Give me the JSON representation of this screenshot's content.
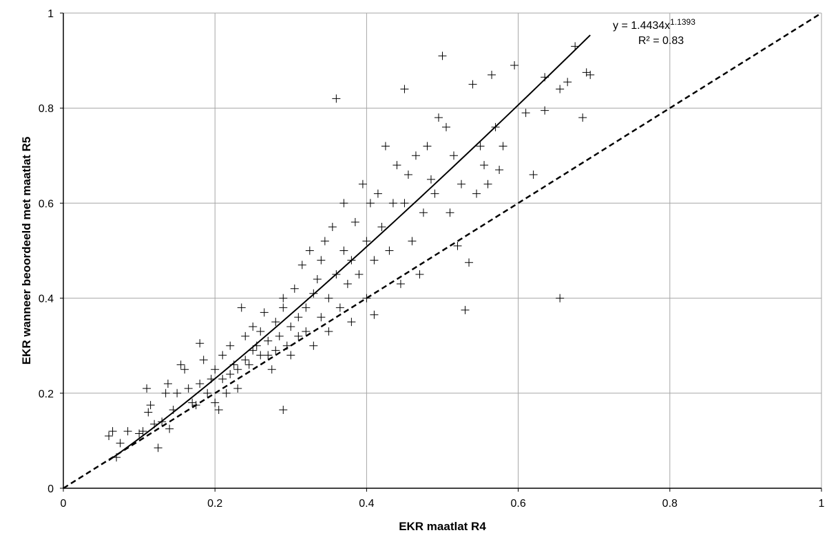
{
  "chart_data": {
    "type": "scatter",
    "title": "",
    "xlabel": "EKR maatlat R4",
    "ylabel": "EKR wanneer beoordeeld met maatlat R5",
    "xlim": [
      0,
      1
    ],
    "ylim": [
      0,
      1
    ],
    "x_ticks": [
      "0",
      "0.2",
      "0.4",
      "0.6",
      "0.8",
      "1"
    ],
    "y_ticks": [
      "0",
      "0.2",
      "0.4",
      "0.6",
      "0.8",
      "1"
    ],
    "grid": true,
    "legend": "none",
    "marker": "plus",
    "colors": {
      "marker": "#000000",
      "grid": "#a6a6a6",
      "axis": "#000000"
    },
    "annotation": {
      "equation_prefix": "y = 1.4434x",
      "equation_exponent": "1.1393",
      "r_squared": "R² = 0.83"
    },
    "trendline": {
      "type": "power",
      "a": 1.4434,
      "b": 1.1393,
      "x_range": [
        0.06,
        0.695
      ],
      "style": "solid"
    },
    "reference_line": {
      "type": "identity",
      "x_range": [
        0,
        1
      ],
      "style": "dashed"
    },
    "series": [
      {
        "points": [
          [
            0.06,
            0.11
          ],
          [
            0.065,
            0.12
          ],
          [
            0.07,
            0.065
          ],
          [
            0.075,
            0.095
          ],
          [
            0.085,
            0.12
          ],
          [
            0.1,
            0.115
          ],
          [
            0.105,
            0.12
          ],
          [
            0.11,
            0.21
          ],
          [
            0.112,
            0.16
          ],
          [
            0.115,
            0.175
          ],
          [
            0.12,
            0.135
          ],
          [
            0.125,
            0.085
          ],
          [
            0.13,
            0.14
          ],
          [
            0.135,
            0.2
          ],
          [
            0.138,
            0.22
          ],
          [
            0.14,
            0.125
          ],
          [
            0.145,
            0.165
          ],
          [
            0.15,
            0.2
          ],
          [
            0.155,
            0.26
          ],
          [
            0.16,
            0.25
          ],
          [
            0.165,
            0.21
          ],
          [
            0.17,
            0.18
          ],
          [
            0.175,
            0.175
          ],
          [
            0.18,
            0.22
          ],
          [
            0.18,
            0.305
          ],
          [
            0.185,
            0.27
          ],
          [
            0.19,
            0.2
          ],
          [
            0.195,
            0.23
          ],
          [
            0.2,
            0.25
          ],
          [
            0.2,
            0.18
          ],
          [
            0.205,
            0.165
          ],
          [
            0.21,
            0.28
          ],
          [
            0.21,
            0.23
          ],
          [
            0.215,
            0.2
          ],
          [
            0.22,
            0.24
          ],
          [
            0.22,
            0.3
          ],
          [
            0.225,
            0.26
          ],
          [
            0.23,
            0.25
          ],
          [
            0.23,
            0.21
          ],
          [
            0.235,
            0.38
          ],
          [
            0.24,
            0.27
          ],
          [
            0.24,
            0.32
          ],
          [
            0.245,
            0.26
          ],
          [
            0.25,
            0.29
          ],
          [
            0.25,
            0.34
          ],
          [
            0.255,
            0.3
          ],
          [
            0.26,
            0.28
          ],
          [
            0.26,
            0.33
          ],
          [
            0.265,
            0.37
          ],
          [
            0.27,
            0.28
          ],
          [
            0.27,
            0.31
          ],
          [
            0.275,
            0.25
          ],
          [
            0.28,
            0.29
          ],
          [
            0.28,
            0.35
          ],
          [
            0.285,
            0.32
          ],
          [
            0.29,
            0.38
          ],
          [
            0.29,
            0.4
          ],
          [
            0.29,
            0.165
          ],
          [
            0.295,
            0.3
          ],
          [
            0.3,
            0.28
          ],
          [
            0.3,
            0.34
          ],
          [
            0.305,
            0.42
          ],
          [
            0.31,
            0.36
          ],
          [
            0.31,
            0.32
          ],
          [
            0.315,
            0.47
          ],
          [
            0.32,
            0.33
          ],
          [
            0.32,
            0.38
          ],
          [
            0.325,
            0.5
          ],
          [
            0.33,
            0.41
          ],
          [
            0.33,
            0.3
          ],
          [
            0.335,
            0.44
          ],
          [
            0.34,
            0.36
          ],
          [
            0.34,
            0.48
          ],
          [
            0.345,
            0.52
          ],
          [
            0.35,
            0.4
          ],
          [
            0.35,
            0.33
          ],
          [
            0.355,
            0.55
          ],
          [
            0.36,
            0.45
          ],
          [
            0.36,
            0.82
          ],
          [
            0.365,
            0.38
          ],
          [
            0.37,
            0.5
          ],
          [
            0.37,
            0.6
          ],
          [
            0.375,
            0.43
          ],
          [
            0.38,
            0.35
          ],
          [
            0.38,
            0.48
          ],
          [
            0.385,
            0.56
          ],
          [
            0.39,
            0.45
          ],
          [
            0.395,
            0.64
          ],
          [
            0.4,
            0.52
          ],
          [
            0.4,
            0.4
          ],
          [
            0.405,
            0.6
          ],
          [
            0.41,
            0.48
          ],
          [
            0.41,
            0.365
          ],
          [
            0.415,
            0.62
          ],
          [
            0.42,
            0.55
          ],
          [
            0.425,
            0.72
          ],
          [
            0.43,
            0.5
          ],
          [
            0.435,
            0.6
          ],
          [
            0.44,
            0.68
          ],
          [
            0.445,
            0.43
          ],
          [
            0.45,
            0.84
          ],
          [
            0.45,
            0.6
          ],
          [
            0.455,
            0.66
          ],
          [
            0.46,
            0.52
          ],
          [
            0.465,
            0.7
          ],
          [
            0.47,
            0.45
          ],
          [
            0.475,
            0.58
          ],
          [
            0.48,
            0.72
          ],
          [
            0.485,
            0.65
          ],
          [
            0.49,
            0.62
          ],
          [
            0.495,
            0.78
          ],
          [
            0.5,
            0.91
          ],
          [
            0.505,
            0.76
          ],
          [
            0.51,
            0.58
          ],
          [
            0.515,
            0.7
          ],
          [
            0.52,
            0.51
          ],
          [
            0.525,
            0.64
          ],
          [
            0.53,
            0.375
          ],
          [
            0.535,
            0.475
          ],
          [
            0.54,
            0.85
          ],
          [
            0.545,
            0.62
          ],
          [
            0.55,
            0.72
          ],
          [
            0.555,
            0.68
          ],
          [
            0.56,
            0.64
          ],
          [
            0.565,
            0.87
          ],
          [
            0.57,
            0.76
          ],
          [
            0.575,
            0.67
          ],
          [
            0.58,
            0.72
          ],
          [
            0.595,
            0.89
          ],
          [
            0.61,
            0.79
          ],
          [
            0.62,
            0.66
          ],
          [
            0.635,
            0.865
          ],
          [
            0.635,
            0.795
          ],
          [
            0.655,
            0.4
          ],
          [
            0.655,
            0.84
          ],
          [
            0.665,
            0.855
          ],
          [
            0.675,
            0.93
          ],
          [
            0.685,
            0.78
          ],
          [
            0.69,
            0.875
          ],
          [
            0.695,
            0.87
          ]
        ]
      }
    ]
  }
}
